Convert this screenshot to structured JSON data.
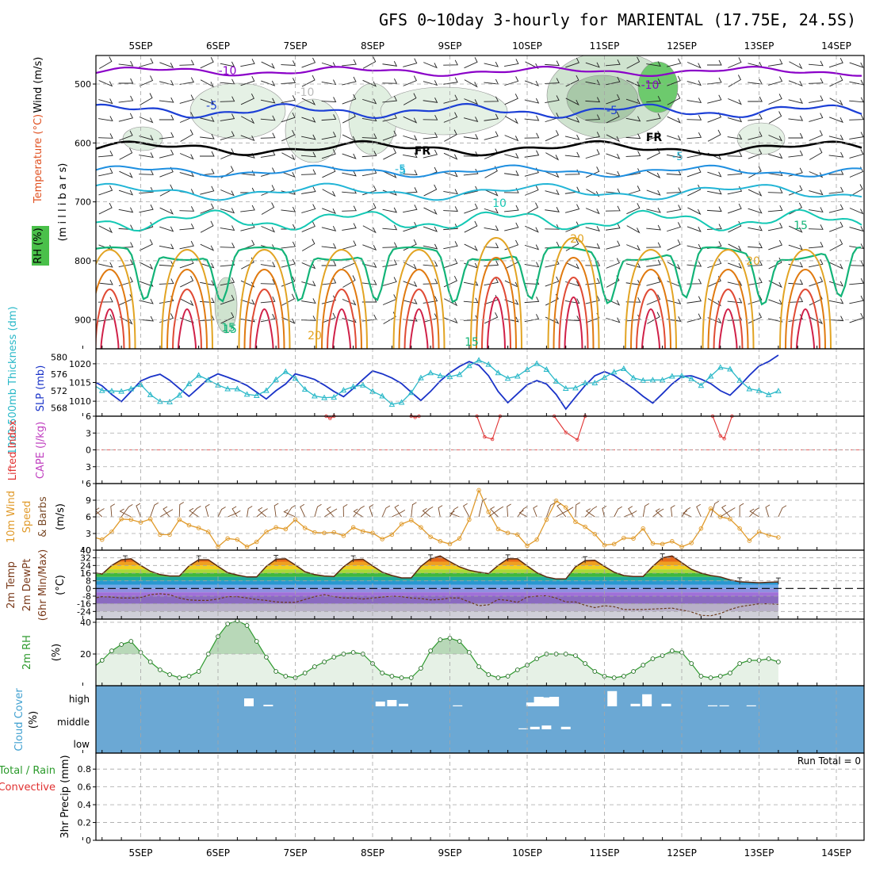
{
  "title": "GFS 0~10day 3-hourly for MARIENTAL (17.75E, 24.5S)",
  "x_tick_labels": [
    "5SEP",
    "6SEP",
    "7SEP",
    "8SEP",
    "9SEP",
    "10SEP",
    "11SEP",
    "12SEP",
    "13SEP",
    "14SEP"
  ],
  "panel_labels": {
    "upper_air": [
      "Wind (m/s)",
      "Temperature (°C)",
      "(m i l l i b a r s)",
      "RH (%)"
    ],
    "pressure": [
      "1000-500mb Thickness (dm)",
      "SLP (mb)"
    ],
    "stability": [
      "Lifted Index",
      "CAPE (J/kg)"
    ],
    "wind10m": [
      "10m Wind",
      "Speed",
      "& Barbs",
      "(m/s)"
    ],
    "temp2m": [
      "2m Temp",
      "2m DewPt",
      "(6hr Min/Max)",
      "(°C)"
    ],
    "rh2m": [
      "2m RH",
      "(%)"
    ],
    "cloud": [
      "Cloud Cover",
      "(%)"
    ],
    "precip": [
      "Total / Rain",
      "Convective",
      "3hr Precip (mm)"
    ]
  },
  "cloud_levels": [
    "high",
    "middle",
    "low"
  ],
  "run_total": "Run Total = 0",
  "contour_labels": [
    "-10",
    "-10",
    "-10",
    "-5",
    "-5",
    "-5",
    "FR",
    "FR",
    "-5",
    "5",
    "10",
    "15",
    "15",
    "20",
    "20",
    "20",
    "15",
    "15"
  ],
  "colors": {
    "temp_minus10": "#8a00c8",
    "temp_minus5": "#1c3fd6",
    "temp_0": "#1e8fe0",
    "temp_5": "#22b5d6",
    "temp_10": "#13c8b4",
    "temp_15": "#13b478",
    "temp_20": "#e2a423",
    "slp": "#1a33c8",
    "thickness": "#29b8c8",
    "wind10m_speed": "#e09a2a",
    "rh2m": "#2e9a2e",
    "cloud": "#6ba8d4",
    "lifted_index": "#e03030",
    "cape": "#c040c0"
  },
  "chart_data": [
    {
      "type": "line",
      "panel": "pressure",
      "x_unit": "days from 5SEP 00Z",
      "x": [
        0.0,
        0.125,
        0.25,
        0.375,
        0.5,
        0.625,
        0.75,
        0.875,
        1.0,
        1.125,
        1.25,
        1.375,
        1.5,
        1.625,
        1.75,
        1.875,
        2.0,
        2.125,
        2.25,
        2.375,
        2.5,
        2.625,
        2.75,
        2.875,
        3.0,
        3.125,
        3.25,
        3.375,
        3.5,
        3.625,
        3.75,
        3.875,
        4.0,
        4.125,
        4.25,
        4.375,
        4.5,
        4.625,
        4.75,
        4.875,
        5.0,
        5.125,
        5.25,
        5.375,
        5.5,
        5.625,
        5.75,
        5.875,
        6.0,
        6.125,
        6.25,
        6.375,
        6.5,
        6.625,
        6.75,
        6.875,
        7.0,
        7.125,
        7.25,
        7.375,
        7.5,
        7.625,
        7.75,
        7.875,
        8.0,
        8.125,
        8.25,
        8.375,
        8.5,
        8.625,
        8.75,
        8.875,
        9.0,
        9.125,
        9.25
      ],
      "series": [
        {
          "name": "SLP (mb)",
          "values": [
            1015.2,
            1013.4,
            1014.5,
            1015.5,
            1014.1,
            1011.8,
            1009.9,
            1012.6,
            1015.4,
            1016.5,
            1017.2,
            1015.6,
            1013.4,
            1011.3,
            1013.6,
            1016.0,
            1017.3,
            1016.4,
            1015.4,
            1014.2,
            1012.4,
            1010.6,
            1012.8,
            1014.6,
            1017.3,
            1016.6,
            1015.8,
            1014.3,
            1012.6,
            1011.2,
            1013.4,
            1015.8,
            1018.1,
            1017.3,
            1016.2,
            1014.7,
            1012.4,
            1010.2,
            1012.6,
            1015.4,
            1017.6,
            1019.3,
            1020.6,
            1019.6,
            1016.8,
            1012.6,
            1009.6,
            1012.0,
            1014.4,
            1015.5,
            1014.6,
            1011.8,
            1007.9,
            1011.1,
            1014.2,
            1016.8,
            1017.9,
            1016.9,
            1015.2,
            1013.4,
            1011.3,
            1009.5,
            1012.0,
            1014.6,
            1016.6,
            1016.8,
            1015.9,
            1014.7,
            1012.8,
            1011.6,
            1014.1,
            1016.9,
            1019.4,
            1020.6,
            1022.3
          ]
        },
        {
          "name": "1000-500mb Thickness (dm)",
          "values": [
            575.5,
            576.0,
            575.0,
            573.6,
            572.1,
            572.0,
            571.9,
            572.5,
            573.5,
            571.1,
            569.5,
            569.4,
            571.0,
            573.7,
            575.7,
            574.6,
            573.4,
            572.5,
            572.5,
            571.2,
            570.9,
            572.1,
            574.7,
            576.6,
            575.0,
            572.4,
            570.8,
            570.4,
            570.5,
            572.2,
            573.0,
            573.4,
            571.9,
            570.8,
            568.8,
            569.3,
            571.6,
            575.1,
            576.3,
            575.6,
            575.4,
            575.9,
            578.0,
            579.3,
            578.3,
            576.3,
            575.0,
            575.5,
            577.1,
            578.5,
            577.1,
            574.3,
            572.6,
            572.7,
            573.9,
            573.9,
            575.2,
            576.5,
            577.3,
            575.1,
            574.5,
            574.6,
            574.6,
            575.5,
            575.6,
            574.9,
            573.3,
            575.5,
            577.6,
            577.2,
            574.5,
            572.5,
            572.1,
            571.1,
            572.0
          ]
        }
      ],
      "ylim_slp": [
        1006,
        1024
      ],
      "ylim_thickness": [
        566,
        582
      ],
      "slp_ticks": [
        1010,
        1015,
        1020
      ],
      "thickness_ticks": [
        568,
        572,
        576,
        580
      ]
    },
    {
      "type": "line",
      "panel": "stability",
      "x_unit": "days from 5SEP 00Z",
      "ylim": [
        6,
        -6
      ],
      "yticks": [
        -6,
        -3,
        0,
        3,
        6
      ],
      "series": [
        {
          "name": "Lifted Index",
          "x": [
            3.4,
            3.45,
            3.5,
            4.5,
            4.55,
            4.6,
            5.35,
            5.45,
            5.55,
            5.65,
            6.35,
            6.5,
            6.65,
            6.75,
            8.4,
            8.5,
            8.55,
            8.65
          ],
          "values": [
            6,
            5.6,
            6,
            6,
            5.8,
            6,
            6,
            2.3,
            1.9,
            6,
            6,
            3.1,
            1.8,
            6,
            6,
            2.5,
            2.0,
            6
          ]
        }
      ]
    },
    {
      "type": "line",
      "panel": "wind10m",
      "x_unit": "days from 5SEP 00Z",
      "ylim": [
        0,
        12
      ],
      "yticks": [
        0,
        3,
        6,
        9
      ],
      "x": [
        0.0,
        0.125,
        0.25,
        0.375,
        0.5,
        0.625,
        0.75,
        0.875,
        1.0,
        1.125,
        1.25,
        1.375,
        1.5,
        1.625,
        1.75,
        1.875,
        2.0,
        2.125,
        2.25,
        2.375,
        2.5,
        2.625,
        2.75,
        2.875,
        3.0,
        3.125,
        3.25,
        3.375,
        3.5,
        3.625,
        3.75,
        3.875,
        4.0,
        4.125,
        4.25,
        4.375,
        4.5,
        4.625,
        4.75,
        4.875,
        5.0,
        5.125,
        5.25,
        5.375,
        5.5,
        5.625,
        5.75,
        5.875,
        6.0,
        6.125,
        6.25,
        6.375,
        6.5,
        6.625,
        6.75,
        6.875,
        7.0,
        7.125,
        7.25,
        7.375,
        7.5,
        7.625,
        7.75,
        7.875,
        8.0,
        8.125,
        8.25,
        8.375,
        8.5,
        8.625,
        8.75,
        8.875,
        9.0,
        9.125,
        9.25
      ],
      "series": [
        {
          "name": "Speed (m/s)",
          "values": [
            4.4,
            4.6,
            3.8,
            2.4,
            1.9,
            3.3,
            5.6,
            5.5,
            5.0,
            5.6,
            2.8,
            2.8,
            5.5,
            4.5,
            4.0,
            3.3,
            0.6,
            2.1,
            1.9,
            0.6,
            1.5,
            3.3,
            4.1,
            3.8,
            5.5,
            4.0,
            3.2,
            3.1,
            3.2,
            2.6,
            4.1,
            3.4,
            3.1,
            2.0,
            2.8,
            4.7,
            5.4,
            4.1,
            2.4,
            1.6,
            1.1,
            2.1,
            5.5,
            10.8,
            6.9,
            3.8,
            3.1,
            2.8,
            0.8,
            1.9,
            5.5,
            8.9,
            7.7,
            5.1,
            4.2,
            2.9,
            0.9,
            1.1,
            2.2,
            2.1,
            3.9,
            1.2,
            1.1,
            1.6,
            0.6,
            1.3,
            3.9,
            7.5,
            6.0,
            5.6,
            3.9,
            1.7,
            3.3,
            2.7,
            2.3
          ]
        }
      ]
    },
    {
      "type": "area",
      "panel": "temp2m",
      "x_unit": "days from 5SEP 00Z",
      "ylim": [
        -32,
        40
      ],
      "yticks": [
        -24,
        -16,
        -8,
        0,
        8,
        16,
        24,
        32,
        40
      ],
      "x": [
        0.0,
        0.125,
        0.25,
        0.375,
        0.5,
        0.625,
        0.75,
        0.875,
        1.0,
        1.125,
        1.25,
        1.375,
        1.5,
        1.625,
        1.75,
        1.875,
        2.0,
        2.125,
        2.25,
        2.375,
        2.5,
        2.625,
        2.75,
        2.875,
        3.0,
        3.125,
        3.25,
        3.375,
        3.5,
        3.625,
        3.75,
        3.875,
        4.0,
        4.125,
        4.25,
        4.375,
        4.5,
        4.625,
        4.75,
        4.875,
        5.0,
        5.125,
        5.25,
        5.375,
        5.5,
        5.625,
        5.75,
        5.875,
        6.0,
        6.125,
        6.25,
        6.375,
        6.5,
        6.625,
        6.75,
        6.875,
        7.0,
        7.125,
        7.25,
        7.375,
        7.5,
        7.625,
        7.75,
        7.875,
        8.0,
        8.125,
        8.25,
        8.375,
        8.5,
        8.625,
        8.75,
        8.875,
        9.0,
        9.125,
        9.25
      ],
      "series": [
        {
          "name": "2m Temp (°C)",
          "values": [
            28.0,
            22.0,
            19.0,
            17.0,
            15.0,
            24.0,
            30.0,
            31.0,
            24.0,
            18.0,
            14.5,
            13.0,
            13.0,
            23.5,
            30.0,
            30.0,
            23.0,
            16.5,
            14.0,
            12.0,
            12.0,
            23.0,
            30.5,
            31.0,
            24.5,
            17.5,
            14.5,
            13.0,
            12.5,
            22.5,
            30.0,
            30.5,
            23.5,
            17.0,
            13.5,
            11.0,
            11.0,
            23.0,
            31.0,
            34.0,
            28.0,
            22.5,
            19.0,
            17.0,
            15.5,
            24.0,
            31.0,
            31.0,
            23.5,
            16.5,
            12.0,
            10.0,
            10.0,
            22.5,
            29.0,
            29.5,
            23.0,
            17.0,
            13.5,
            12.5,
            12.5,
            23.0,
            32.0,
            34.0,
            27.0,
            20.0,
            16.0,
            13.5,
            12.0,
            9.0,
            7.0,
            6.5,
            6.0,
            6.5,
            6.8
          ]
        },
        {
          "name": "2m DewPt (°C)",
          "values": [
            -20.0,
            -20.0,
            -17.5,
            -10.5,
            -8.5,
            -9.0,
            -10.0,
            -10.0,
            -9.5,
            -6.5,
            -5.5,
            -6.5,
            -10.0,
            -12.0,
            -12.5,
            -12.5,
            -11.0,
            -8.5,
            -8.5,
            -10.0,
            -11.5,
            -12.5,
            -14.0,
            -14.5,
            -14.5,
            -11.5,
            -8.5,
            -6.5,
            -8.5,
            -10.0,
            -10.0,
            -11.0,
            -10.0,
            -9.0,
            -8.0,
            -8.5,
            -10.0,
            -10.5,
            -12.0,
            -11.5,
            -10.0,
            -10.0,
            -14.0,
            -18.0,
            -17.0,
            -11.5,
            -12.5,
            -14.5,
            -9.0,
            -8.0,
            -7.5,
            -10.0,
            -14.0,
            -14.0,
            -17.5,
            -20.0,
            -18.0,
            -19.0,
            -22.0,
            -22.0,
            -22.0,
            -21.5,
            -21.0,
            -20.5,
            -22.5,
            -24.5,
            -28.0,
            -28.5,
            -26.0,
            -22.0,
            -19.0,
            -17.5,
            -16.0,
            -16.0,
            -16.5
          ]
        }
      ],
      "max_markers": [
        0.8,
        1.75,
        2.75,
        3.75,
        4.75,
        5.75,
        6.75,
        7.75,
        8.75,
        9.25
      ],
      "min_marker": 9.25
    },
    {
      "type": "area",
      "panel": "rh2m",
      "x_unit": "days from 5SEP 00Z",
      "ylim": [
        0,
        42
      ],
      "yticks": [
        20,
        40
      ],
      "x": [
        0.0,
        0.125,
        0.25,
        0.375,
        0.5,
        0.625,
        0.75,
        0.875,
        1.0,
        1.125,
        1.25,
        1.375,
        1.5,
        1.625,
        1.75,
        1.875,
        2.0,
        2.125,
        2.25,
        2.375,
        2.5,
        2.625,
        2.75,
        2.875,
        3.0,
        3.125,
        3.25,
        3.375,
        3.5,
        3.625,
        3.75,
        3.875,
        4.0,
        4.125,
        4.25,
        4.375,
        4.5,
        4.625,
        4.75,
        4.875,
        5.0,
        5.125,
        5.25,
        5.375,
        5.5,
        5.625,
        5.75,
        5.875,
        6.0,
        6.125,
        6.25,
        6.375,
        6.5,
        6.625,
        6.75,
        6.875,
        7.0,
        7.125,
        7.25,
        7.375,
        7.5,
        7.625,
        7.75,
        7.875,
        8.0,
        8.125,
        8.25,
        8.375,
        8.5,
        8.625,
        8.75,
        8.875,
        9.0,
        9.125,
        9.25
      ],
      "series": [
        {
          "name": "2m RH (%)",
          "values": [
            5,
            5,
            6,
            11,
            16,
            22,
            26,
            28,
            21,
            15,
            10,
            7,
            5,
            6,
            9,
            20,
            31,
            39,
            41,
            38,
            28,
            18,
            9,
            6,
            5,
            8,
            12,
            15,
            18,
            20,
            21,
            20,
            14,
            8,
            6,
            5,
            5,
            11,
            22,
            29,
            30,
            28,
            21,
            12,
            7,
            5,
            6,
            10,
            13,
            17,
            20,
            20,
            20,
            19,
            14,
            9,
            6,
            5,
            6,
            9,
            13,
            17,
            19,
            22,
            21,
            14,
            6,
            5,
            6,
            8,
            14,
            16,
            16,
            17,
            15
          ]
        }
      ]
    },
    {
      "type": "bar",
      "panel": "cloud",
      "x_unit": "days from 5SEP 00Z",
      "series": [
        {
          "name": "high",
          "x": [
            0.1,
            0.2,
            0.35,
            2.4,
            2.65,
            4.1,
            4.25,
            4.4,
            5.1,
            6.05,
            6.15,
            6.25,
            6.35,
            7.1,
            7.4,
            7.55,
            7.8,
            8.4,
            8.55,
            8.9
          ],
          "values": [
            15,
            10,
            12,
            25,
            5,
            15,
            20,
            8,
            3,
            12,
            30,
            28,
            30,
            48,
            8,
            38,
            8,
            3,
            3,
            3
          ]
        },
        {
          "name": "middle",
          "x": [
            5.95,
            6.1,
            6.25,
            6.5
          ],
          "values": [
            3,
            8,
            12,
            8
          ]
        }
      ]
    }
  ]
}
